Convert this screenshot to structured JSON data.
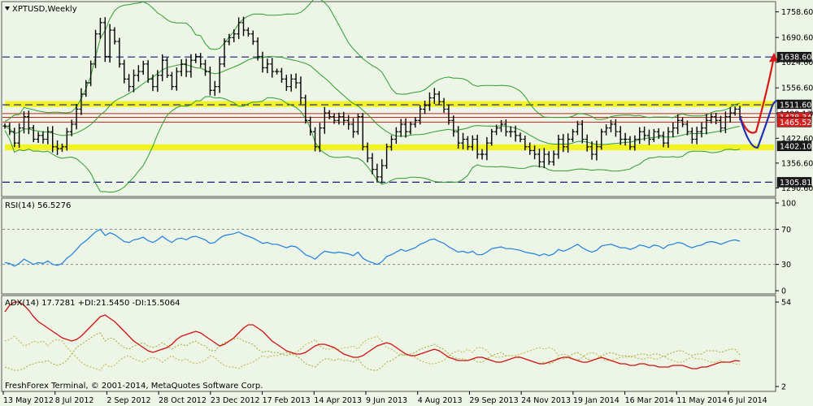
{
  "main_panel": {
    "title": "XPTUSD,Weekly",
    "y_axis_ticks": [
      "1758.60",
      "1690.60",
      "1624.60",
      "1556.60",
      "1488.60",
      "1422.60",
      "1356.60",
      "1290.60"
    ],
    "price_tags": [
      {
        "label": "1638.60",
        "value": 1638.6,
        "style": "dark"
      },
      {
        "label": "1511.60",
        "value": 1511.6,
        "style": "dark"
      },
      {
        "label": "1488.13",
        "value": 1488.13,
        "style": "white"
      },
      {
        "label": "1478.34",
        "value": 1478.34,
        "style": "red"
      },
      {
        "label": "1465.52",
        "value": 1465.52,
        "style": "red"
      },
      {
        "label": "1402.10",
        "value": 1402.1,
        "style": "dark"
      },
      {
        "label": "1305.81",
        "value": 1305.81,
        "style": "dark"
      }
    ]
  },
  "rsi_panel": {
    "title": "RSI(14) 56.5276",
    "y_axis_ticks": [
      "100",
      "70",
      "30",
      "0"
    ],
    "levels": [
      70,
      30
    ]
  },
  "adx_panel": {
    "title": "ADX(14) 17.7281 +DI:21.5450 -DI:15.5064",
    "y_axis_ticks": [
      "54",
      "2"
    ]
  },
  "x_axis_labels": [
    "13 May 2012",
    "8 Jul 2012",
    "2 Sep 2012",
    "28 Oct 2012",
    "23 Dec 2012",
    "17 Feb 2013",
    "14 Apr 2013",
    "9 Jun 2013",
    "4 Aug 2013",
    "29 Sep 2013",
    "24 Nov 2013",
    "19 Jan 2014",
    "16 Mar 2014",
    "11 May 2014",
    "6 Jul 2014"
  ],
  "copyright": "FreshForex Terminal, © 2001-2014, MetaQuotes Software Corp.",
  "colors": {
    "background": "#ECF5E6",
    "candles": "#000000",
    "bollinger": "#2E9E2E",
    "yellow_band": "#F2F200",
    "navy_dashed": "#1A1A80",
    "red_lines": "#C82020",
    "rsi_line": "#1E7FE0",
    "adx_line": "#D01010",
    "di_plus": "#9AAF32",
    "di_minus": "#C3B24A",
    "forecast_up": "#D81818",
    "forecast_down": "#1A2FB0"
  },
  "chart_data": {
    "type": "candlestick",
    "symbol": "XPTUSD",
    "timeframe": "Weekly",
    "ylim": [
      1270,
      1775
    ],
    "horizontal_levels": {
      "navy_dashed": [
        1638.6,
        1511.6,
        1305.81
      ],
      "red_solid": [
        1488.13,
        1478.34,
        1465.52
      ],
      "yellow_support_band": [
        1402.1,
        1395
      ],
      "yellow_resistance_band": [
        1517,
        1510
      ]
    },
    "close_prices": [
      1455,
      1440,
      1410,
      1450,
      1480,
      1450,
      1420,
      1430,
      1420,
      1440,
      1400,
      1395,
      1400,
      1440,
      1460,
      1500,
      1540,
      1570,
      1620,
      1700,
      1730,
      1640,
      1710,
      1680,
      1620,
      1580,
      1560,
      1590,
      1600,
      1620,
      1580,
      1560,
      1590,
      1630,
      1590,
      1560,
      1600,
      1620,
      1600,
      1630,
      1640,
      1620,
      1600,
      1550,
      1560,
      1620,
      1680,
      1690,
      1700,
      1730,
      1710,
      1700,
      1680,
      1640,
      1610,
      1620,
      1600,
      1600,
      1580,
      1560,
      1580,
      1570,
      1530,
      1470,
      1440,
      1400,
      1450,
      1490,
      1480,
      1470,
      1480,
      1470,
      1460,
      1440,
      1480,
      1400,
      1370,
      1340,
      1320,
      1350,
      1400,
      1420,
      1440,
      1460,
      1440,
      1460,
      1470,
      1500,
      1510,
      1530,
      1540,
      1520,
      1500,
      1470,
      1440,
      1410,
      1420,
      1400,
      1420,
      1380,
      1380,
      1410,
      1440,
      1450,
      1460,
      1440,
      1440,
      1430,
      1420,
      1400,
      1390,
      1380,
      1360,
      1380,
      1360,
      1380,
      1420,
      1400,
      1420,
      1440,
      1460,
      1420,
      1400,
      1380,
      1400,
      1440,
      1450,
      1460,
      1440,
      1420,
      1420,
      1400,
      1420,
      1440,
      1430,
      1420,
      1440,
      1430,
      1410,
      1440,
      1450,
      1470,
      1460,
      1440,
      1420,
      1440,
      1450,
      1470,
      1480,
      1470,
      1450,
      1480,
      1490,
      1500,
      1480
    ],
    "rsi": [
      32,
      31,
      28,
      31,
      36,
      33,
      30,
      32,
      31,
      34,
      30,
      29,
      31,
      37,
      41,
      47,
      53,
      57,
      62,
      67,
      70,
      63,
      66,
      64,
      60,
      56,
      55,
      58,
      59,
      61,
      57,
      55,
      58,
      62,
      58,
      55,
      59,
      60,
      58,
      61,
      62,
      60,
      58,
      54,
      55,
      60,
      63,
      64,
      65,
      67,
      64,
      62,
      60,
      57,
      54,
      55,
      53,
      53,
      51,
      49,
      51,
      50,
      46,
      41,
      39,
      36,
      41,
      45,
      44,
      43,
      44,
      43,
      42,
      40,
      44,
      37,
      34,
      32,
      30,
      33,
      39,
      41,
      44,
      47,
      45,
      47,
      49,
      53,
      55,
      58,
      59,
      56,
      54,
      50,
      47,
      44,
      45,
      43,
      45,
      41,
      41,
      44,
      48,
      49,
      50,
      48,
      48,
      47,
      46,
      44,
      43,
      42,
      40,
      42,
      40,
      42,
      47,
      45,
      47,
      50,
      53,
      49,
      46,
      44,
      46,
      51,
      52,
      53,
      51,
      49,
      49,
      47,
      49,
      52,
      51,
      49,
      52,
      51,
      48,
      52,
      53,
      55,
      54,
      51,
      49,
      51,
      52,
      55,
      56,
      55,
      53,
      55,
      57,
      58,
      56.5
    ],
    "adx": [
      48,
      52,
      54,
      54,
      52,
      49,
      45,
      42,
      40,
      38,
      36,
      34,
      32,
      31,
      30,
      31,
      33,
      36,
      39,
      42,
      45,
      46,
      44,
      42,
      39,
      36,
      33,
      30,
      28,
      26,
      24,
      23,
      24,
      25,
      26,
      28,
      31,
      33,
      34,
      35,
      36,
      35,
      33,
      31,
      29,
      27,
      28,
      30,
      32,
      35,
      38,
      40,
      40,
      38,
      36,
      33,
      30,
      28,
      26,
      24,
      23,
      22,
      22,
      23,
      25,
      27,
      28,
      28,
      27,
      26,
      24,
      22,
      21,
      20,
      20,
      21,
      23,
      25,
      27,
      28,
      29,
      28,
      26,
      24,
      22,
      21,
      21,
      22,
      23,
      24,
      25,
      24,
      22,
      20,
      19,
      18,
      18,
      18,
      19,
      20,
      20,
      19,
      18,
      17,
      17,
      18,
      19,
      20,
      20,
      19,
      18,
      17,
      16,
      16,
      17,
      18,
      19,
      20,
      20,
      19,
      18,
      17,
      17,
      18,
      19,
      20,
      19,
      18,
      17,
      16,
      16,
      15,
      15,
      16,
      16,
      15,
      15,
      14,
      14,
      14,
      15,
      15,
      15,
      14,
      13,
      13,
      14,
      14,
      15,
      16,
      17,
      17,
      17,
      18,
      17.7
    ],
    "di_plus": [
      14,
      13,
      12,
      12,
      13,
      15,
      16,
      17,
      17,
      18,
      16,
      15,
      16,
      18,
      22,
      26,
      28,
      30,
      32,
      34,
      35,
      30,
      32,
      31,
      28,
      26,
      25,
      27,
      28,
      29,
      27,
      26,
      27,
      29,
      27,
      25,
      27,
      28,
      27,
      29,
      30,
      28,
      27,
      24,
      24,
      27,
      29,
      30,
      31,
      32,
      30,
      29,
      28,
      25,
      23,
      24,
      23,
      23,
      22,
      21,
      22,
      21,
      19,
      16,
      15,
      14,
      17,
      19,
      19,
      18,
      19,
      18,
      18,
      17,
      19,
      15,
      13,
      12,
      12,
      14,
      17,
      18,
      20,
      22,
      21,
      22,
      23,
      25,
      26,
      27,
      28,
      26,
      25,
      22,
      20,
      19,
      19,
      18,
      19,
      17,
      17,
      19,
      21,
      22,
      23,
      21,
      21,
      21,
      20,
      19,
      18,
      17,
      16,
      17,
      16,
      17,
      20,
      19,
      20,
      22,
      23,
      21,
      19,
      18,
      19,
      21,
      22,
      23,
      22,
      21,
      21,
      20,
      21,
      22,
      22,
      21,
      22,
      22,
      20,
      22,
      23,
      24,
      24,
      22,
      21,
      22,
      22,
      24,
      24,
      24,
      23,
      24,
      25,
      25,
      21.5
    ],
    "di_minus": [
      30,
      31,
      33,
      30,
      27,
      28,
      30,
      29,
      30,
      27,
      30,
      31,
      30,
      26,
      23,
      20,
      17,
      15,
      14,
      13,
      12,
      16,
      14,
      15,
      18,
      20,
      21,
      19,
      18,
      17,
      19,
      20,
      19,
      17,
      19,
      21,
      19,
      18,
      19,
      17,
      16,
      17,
      18,
      21,
      20,
      17,
      15,
      14,
      14,
      13,
      15,
      16,
      17,
      19,
      21,
      20,
      21,
      21,
      22,
      23,
      22,
      23,
      25,
      28,
      29,
      31,
      27,
      25,
      25,
      26,
      25,
      26,
      26,
      27,
      25,
      29,
      31,
      32,
      33,
      30,
      26,
      25,
      23,
      21,
      22,
      21,
      20,
      18,
      17,
      16,
      16,
      17,
      18,
      21,
      23,
      24,
      23,
      25,
      23,
      26,
      26,
      24,
      21,
      20,
      20,
      21,
      21,
      21,
      22,
      23,
      24,
      25,
      26,
      25,
      26,
      25,
      21,
      22,
      21,
      19,
      18,
      20,
      22,
      23,
      22,
      19,
      18,
      18,
      19,
      20,
      20,
      21,
      20,
      19,
      19,
      20,
      19,
      19,
      21,
      19,
      18,
      17,
      17,
      19,
      20,
      19,
      19,
      18,
      17,
      17,
      18,
      17,
      17,
      16,
      15.5
    ]
  }
}
